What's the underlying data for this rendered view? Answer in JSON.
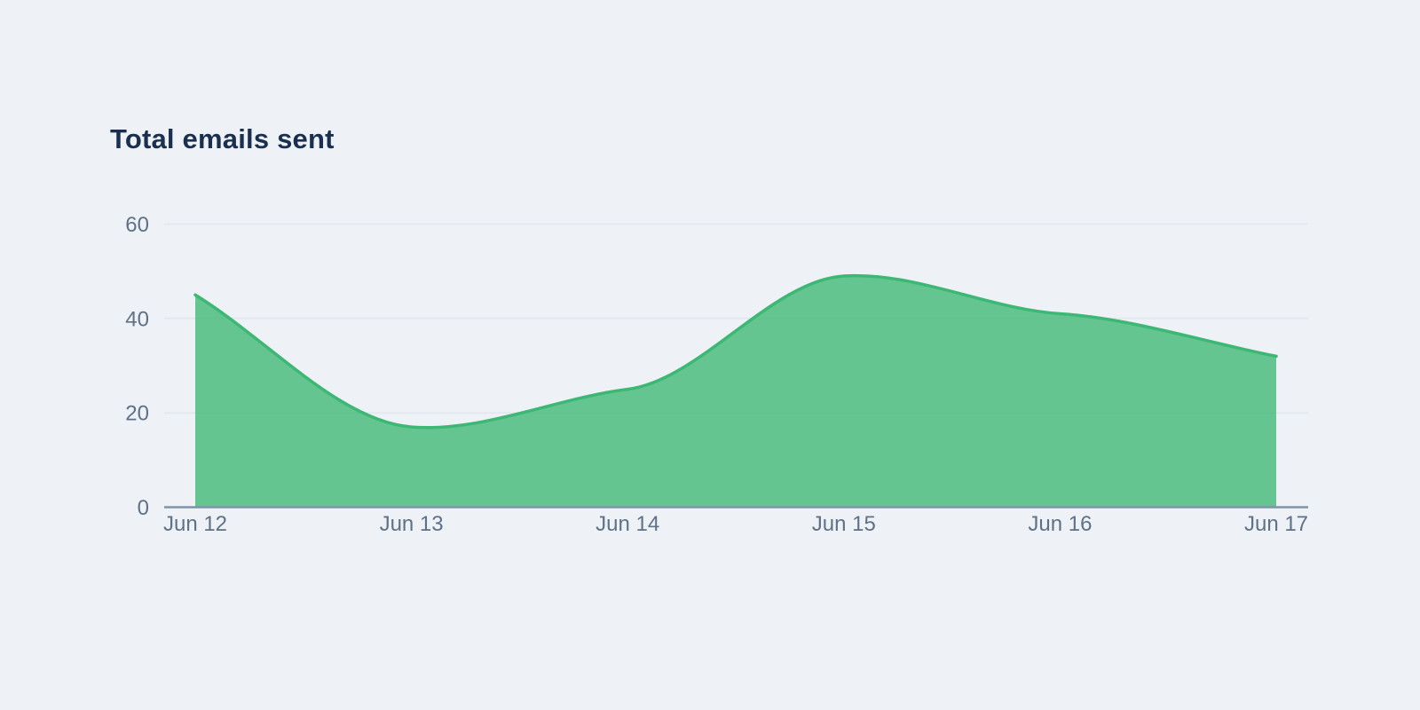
{
  "page": {
    "background_color": "#eef2f7"
  },
  "chart": {
    "title": "Total emails sent",
    "title_color": "#1b2f4e"
  },
  "chart_data": {
    "type": "area",
    "title": "Total emails sent",
    "categories": [
      "Jun 12",
      "Jun 13",
      "Jun 14",
      "Jun 15",
      "Jun 16",
      "Jun 17"
    ],
    "values": [
      45,
      17,
      25,
      49,
      41,
      32
    ],
    "xlabel": "",
    "ylabel": "",
    "ylim": [
      0,
      60
    ],
    "yticks": [
      0,
      20,
      40,
      60
    ],
    "grid": true,
    "legend": false,
    "smooth": true,
    "line_color": "#3db874",
    "fill_color": "rgba(61,184,116,0.78)",
    "grid_color": "#e3e8ef",
    "axis_line_color": "#8093a8",
    "tick_label_color": "#5e7186"
  }
}
